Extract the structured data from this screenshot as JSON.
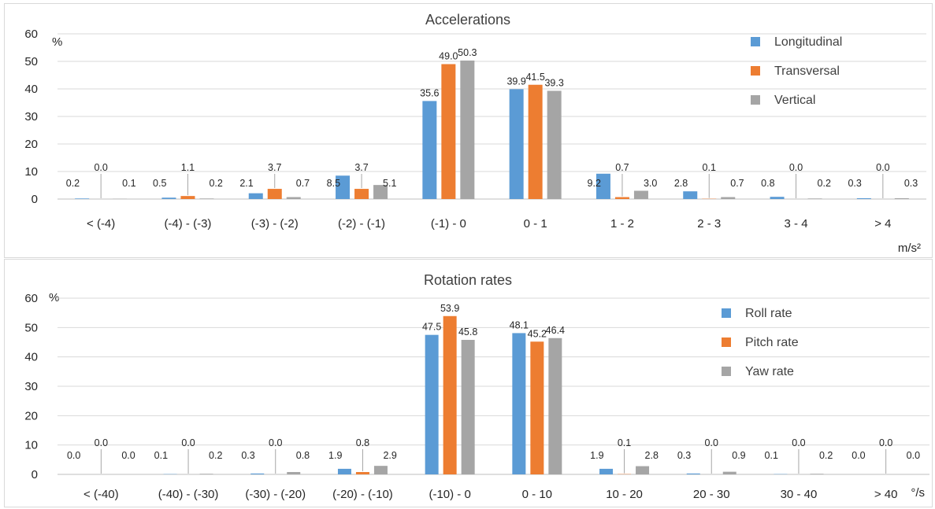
{
  "chart_data": [
    {
      "type": "bar",
      "title": "Accelerations",
      "ylabel": "%",
      "xlabel": "m/s²",
      "ylim": [
        0,
        60
      ],
      "yticks": [
        0,
        10,
        20,
        30,
        40,
        50,
        60
      ],
      "grid": true,
      "legend_position": "top-right",
      "categories": [
        "< (-4)",
        "(-4) - (-3)",
        "(-3) - (-2)",
        "(-2) - (-1)",
        "(-1) - 0",
        "0 - 1",
        "1 - 2",
        "2 - 3",
        "3 - 4",
        "> 4"
      ],
      "series": [
        {
          "name": "Longitudinal",
          "color": "#5b9bd5",
          "values": [
            0.2,
            0.5,
            2.1,
            8.5,
            35.6,
            39.9,
            9.2,
            2.8,
            0.8,
            0.3
          ]
        },
        {
          "name": "Transversal",
          "color": "#ed7d31",
          "values": [
            0.0,
            1.1,
            3.7,
            3.7,
            49.0,
            41.5,
            0.7,
            0.1,
            0.0,
            0.0
          ]
        },
        {
          "name": "Vertical",
          "color": "#a5a5a5",
          "values": [
            0.1,
            0.2,
            0.7,
            5.1,
            50.3,
            39.3,
            3.0,
            0.7,
            0.2,
            0.3
          ]
        }
      ]
    },
    {
      "type": "bar",
      "title": "Rotation rates",
      "ylabel": "%",
      "xlabel": "°/s",
      "ylim": [
        0,
        60
      ],
      "yticks": [
        0,
        10,
        20,
        30,
        40,
        50,
        60
      ],
      "grid": true,
      "legend_position": "top-right",
      "categories": [
        "< (-40)",
        "(-40) - (-30)",
        "(-30) - (-20)",
        "(-20) - (-10)",
        "(-10) - 0",
        "0 - 10",
        "10 - 20",
        "20 - 30",
        "30 - 40",
        "> 40"
      ],
      "series": [
        {
          "name": "Roll rate",
          "color": "#5b9bd5",
          "values": [
            0.0,
            0.1,
            0.3,
            1.9,
            47.5,
            48.1,
            1.9,
            0.3,
            0.1,
            0.0
          ]
        },
        {
          "name": "Pitch rate",
          "color": "#ed7d31",
          "values": [
            0.0,
            0.0,
            0.0,
            0.8,
            53.9,
            45.2,
            0.1,
            0.0,
            0.0,
            0.0
          ]
        },
        {
          "name": "Yaw rate",
          "color": "#a5a5a5",
          "values": [
            0.0,
            0.2,
            0.8,
            2.9,
            45.8,
            46.4,
            2.8,
            0.9,
            0.2,
            0.0
          ]
        }
      ]
    }
  ]
}
